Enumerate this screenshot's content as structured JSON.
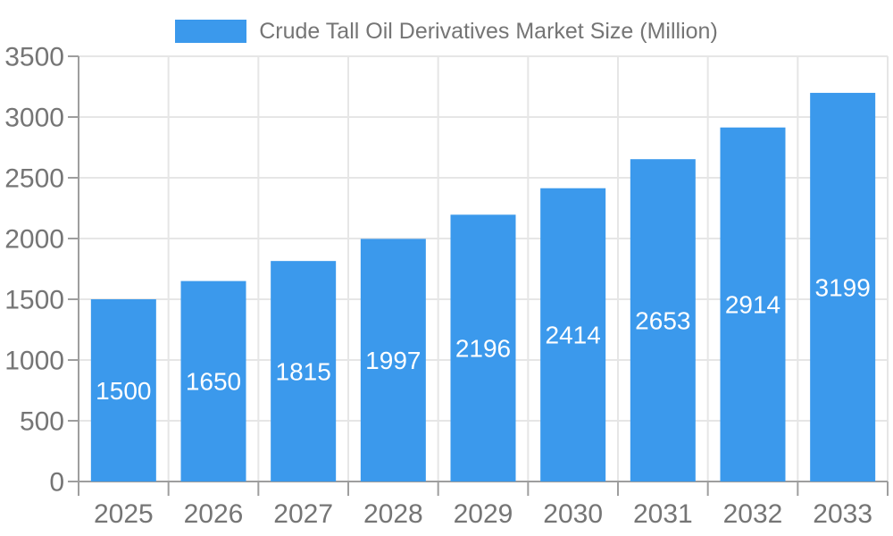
{
  "legend": {
    "label": "Crude Tall Oil Derivatives Market Size (Million)"
  },
  "chart_data": {
    "type": "bar",
    "title": "Crude Tall Oil Derivatives Market Size (Million)",
    "categories": [
      "2025",
      "2026",
      "2027",
      "2028",
      "2029",
      "2030",
      "2031",
      "2032",
      "2033"
    ],
    "values": [
      1500,
      1650,
      1815,
      1997,
      2196,
      2414,
      2653,
      2914,
      3199
    ],
    "xlabel": "",
    "ylabel": "",
    "ylim": [
      0,
      3500
    ],
    "ytick_step": 500,
    "yticks": [
      0,
      500,
      1000,
      1500,
      2000,
      2500,
      3000,
      3500
    ],
    "grid": true,
    "legend_position": "top-center",
    "value_labels": "inside-center"
  },
  "colors": {
    "bar": "#3B99EC",
    "axis_line": "#9E9E9E",
    "grid_line": "#E6E6E6",
    "tick_label": "#757575",
    "legend_label": "#757575",
    "value_label": "#FFFFFF",
    "background": "#FFFFFF"
  }
}
